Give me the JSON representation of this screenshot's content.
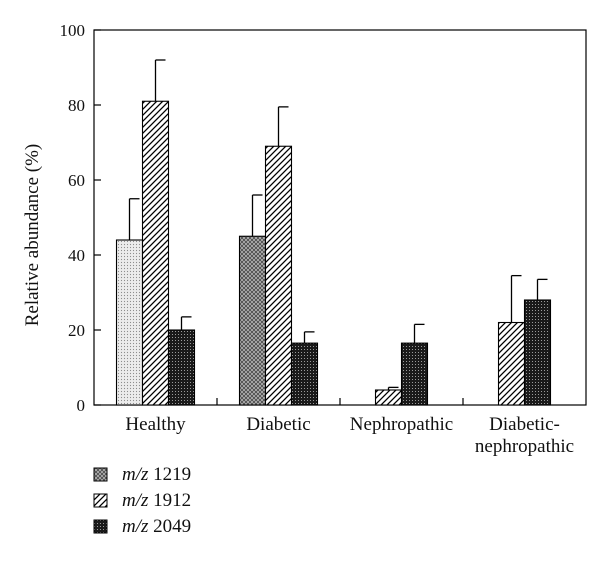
{
  "chart_data": {
    "type": "bar",
    "title": "",
    "xlabel": "",
    "ylabel": "Relative abundance (%)",
    "ylim": [
      0,
      100
    ],
    "yticks": [
      0,
      20,
      40,
      60,
      80,
      100
    ],
    "grid": false,
    "legend_position": "bottom-left",
    "categories": [
      [
        "Healthy"
      ],
      [
        "Diabetic"
      ],
      [
        "Nephropathic"
      ],
      [
        "Diabetic-",
        "nephropathic"
      ]
    ],
    "series": [
      {
        "name_prefix": "m/z",
        "name_number": "1219",
        "values": [
          44,
          45,
          null,
          null
        ],
        "errors": [
          11,
          11,
          null,
          null
        ]
      },
      {
        "name_prefix": "m/z",
        "name_number": "1912",
        "values": [
          81,
          69,
          4,
          22
        ],
        "errors": [
          11,
          10.5,
          0.7,
          12.5
        ]
      },
      {
        "name_prefix": "m/z",
        "name_number": "2049",
        "values": [
          20,
          16.5,
          16.5,
          28
        ],
        "errors": [
          3.5,
          3,
          5,
          5.5
        ]
      }
    ],
    "notes_visible": [
      "Healthy m/z 1219 bar is drawn with a lighter fill than other m/z 1219 bars",
      "Nephropathic and Diabetic-nephropathic have only two bars each"
    ]
  },
  "style": {
    "bar_stroke": "#000000",
    "text_color": "#111111",
    "pattern_1219": "cross-hatch",
    "pattern_1219_light": "light-dots",
    "pattern_1912": "diagonal-stripes",
    "pattern_2049": "dense-dark-grid"
  }
}
